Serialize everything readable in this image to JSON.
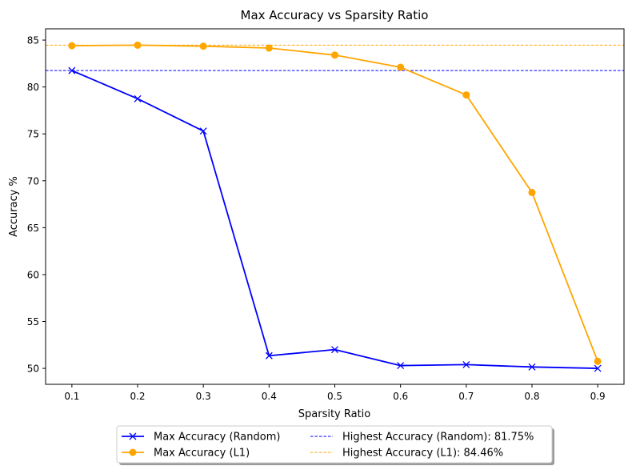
{
  "chart_data": {
    "type": "line",
    "title": "Max Accuracy vs Sparsity Ratio",
    "xlabel": "Sparsity Ratio",
    "ylabel": "Accuracy %",
    "x": [
      0.1,
      0.2,
      0.3,
      0.4,
      0.5,
      0.6,
      0.7,
      0.8,
      0.9
    ],
    "x_tick_labels": [
      "0.1",
      "0.2",
      "0.3",
      "0.4",
      "0.5",
      "0.6",
      "0.7",
      "0.8",
      "0.9"
    ],
    "y_ticks": [
      50,
      55,
      60,
      65,
      70,
      75,
      80,
      85
    ],
    "y_tick_labels": [
      "50",
      "55",
      "60",
      "65",
      "70",
      "75",
      "80",
      "85"
    ],
    "xlim": [
      0.06,
      0.94
    ],
    "ylim": [
      48.3,
      86.2
    ],
    "grid": false,
    "legend_position": "bottom-center (outside)",
    "series": [
      {
        "name": "Max Accuracy (Random)",
        "color": "#0000ff",
        "marker": "x",
        "values": [
          81.75,
          78.75,
          75.3,
          51.35,
          52.0,
          50.3,
          50.4,
          50.15,
          50.0
        ]
      },
      {
        "name": "Max Accuracy (L1)",
        "color": "#ffa500",
        "marker": "o",
        "values": [
          84.4,
          84.46,
          84.35,
          84.15,
          83.4,
          82.1,
          79.15,
          68.75,
          50.75
        ]
      }
    ],
    "reference_lines": [
      {
        "name": "Highest Accuracy (Random): 81.75%",
        "value": 81.75,
        "color": "#0000ff",
        "style": "dashed"
      },
      {
        "name": "Highest Accuracy (L1): 84.46%",
        "value": 84.46,
        "color": "#ffa500",
        "style": "dashed"
      }
    ]
  }
}
